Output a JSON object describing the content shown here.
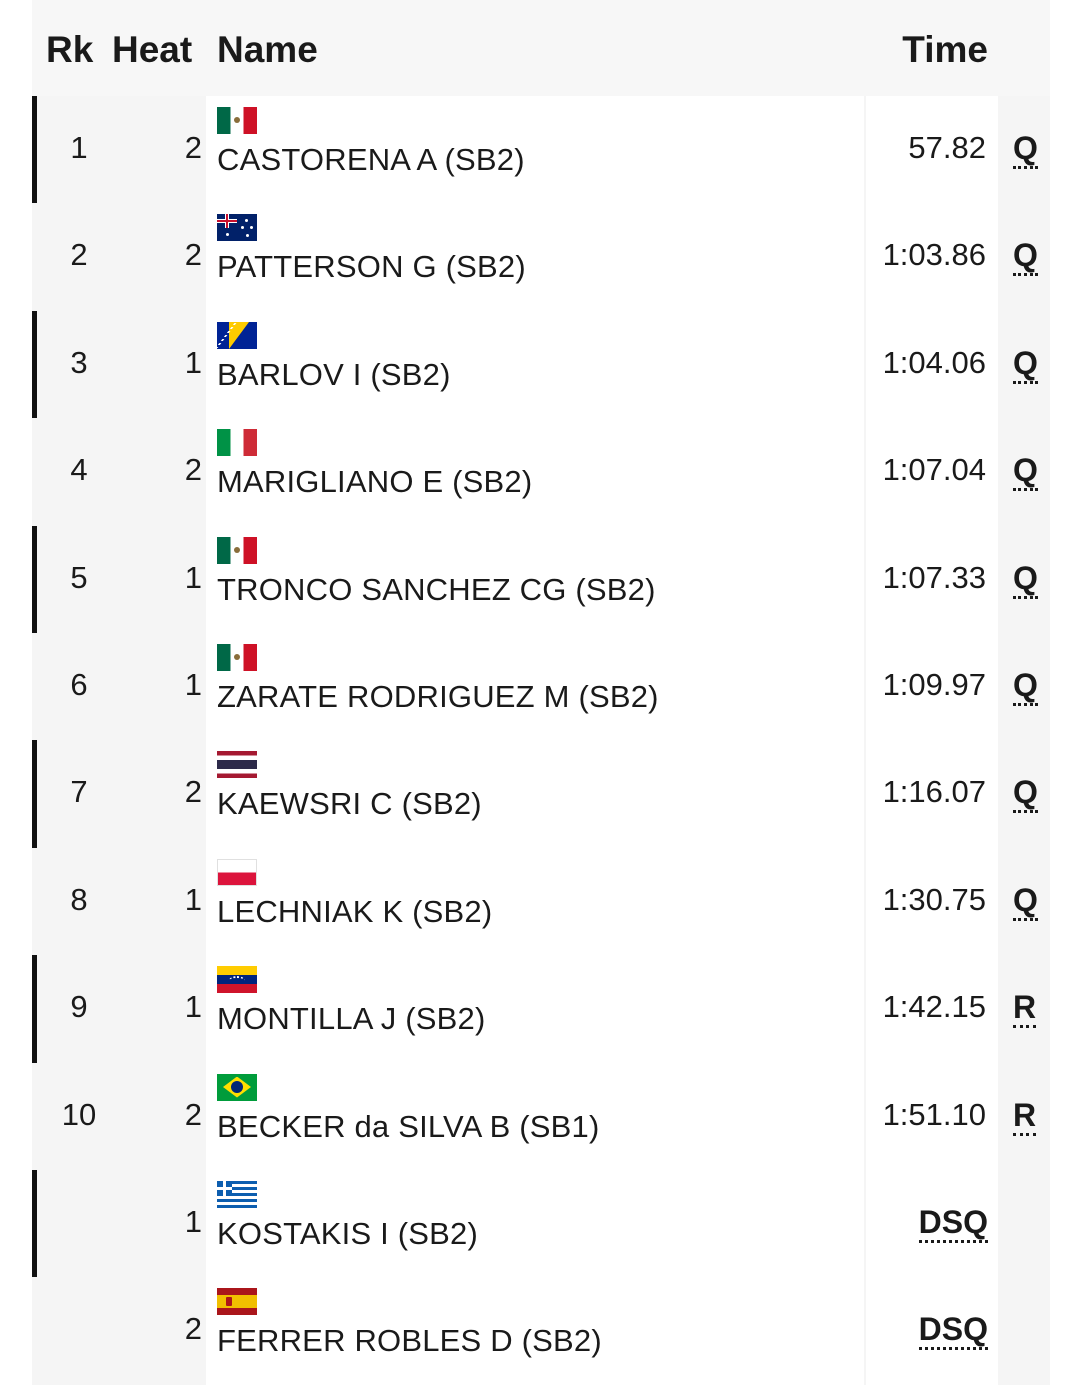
{
  "header": {
    "rank": "Rk",
    "heat": "Heat",
    "name": "Name",
    "time": "Time"
  },
  "rows": [
    {
      "rank": "1",
      "heat": "2",
      "name": "CASTORENA A (SB2)",
      "time": "57.82",
      "qual": "Q",
      "flag": "mexico-flag-icon"
    },
    {
      "rank": "2",
      "heat": "2",
      "name": "PATTERSON G (SB2)",
      "time": "1:03.86",
      "qual": "Q",
      "flag": "australia-flag-icon"
    },
    {
      "rank": "3",
      "heat": "1",
      "name": "BARLOV I (SB2)",
      "time": "1:04.06",
      "qual": "Q",
      "flag": "bosnia-flag-icon"
    },
    {
      "rank": "4",
      "heat": "2",
      "name": "MARIGLIANO E (SB2)",
      "time": "1:07.04",
      "qual": "Q",
      "flag": "italy-flag-icon"
    },
    {
      "rank": "5",
      "heat": "1",
      "name": "TRONCO SANCHEZ CG (SB2)",
      "time": "1:07.33",
      "qual": "Q",
      "flag": "mexico-flag-icon"
    },
    {
      "rank": "6",
      "heat": "1",
      "name": "ZARATE RODRIGUEZ M (SB2)",
      "time": "1:09.97",
      "qual": "Q",
      "flag": "mexico-flag-icon"
    },
    {
      "rank": "7",
      "heat": "2",
      "name": "KAEWSRI C (SB2)",
      "time": "1:16.07",
      "qual": "Q",
      "flag": "thailand-flag-icon"
    },
    {
      "rank": "8",
      "heat": "1",
      "name": "LECHNIAK K (SB2)",
      "time": "1:30.75",
      "qual": "Q",
      "flag": "poland-flag-icon"
    },
    {
      "rank": "9",
      "heat": "1",
      "name": "MONTILLA J (SB2)",
      "time": "1:42.15",
      "qual": "R",
      "flag": "venezuela-flag-icon"
    },
    {
      "rank": "10",
      "heat": "2",
      "name": "BECKER da SILVA B (SB1)",
      "time": "1:51.10",
      "qual": "R",
      "flag": "brazil-flag-icon"
    },
    {
      "rank": "",
      "heat": "1",
      "name": "KOSTAKIS I (SB2)",
      "time": "DSQ",
      "qual": "",
      "flag": "greece-flag-icon"
    },
    {
      "rank": "",
      "heat": "2",
      "name": "FERRER ROBLES D (SB2)",
      "time": "DSQ",
      "qual": "",
      "flag": "spain-flag-icon"
    }
  ]
}
